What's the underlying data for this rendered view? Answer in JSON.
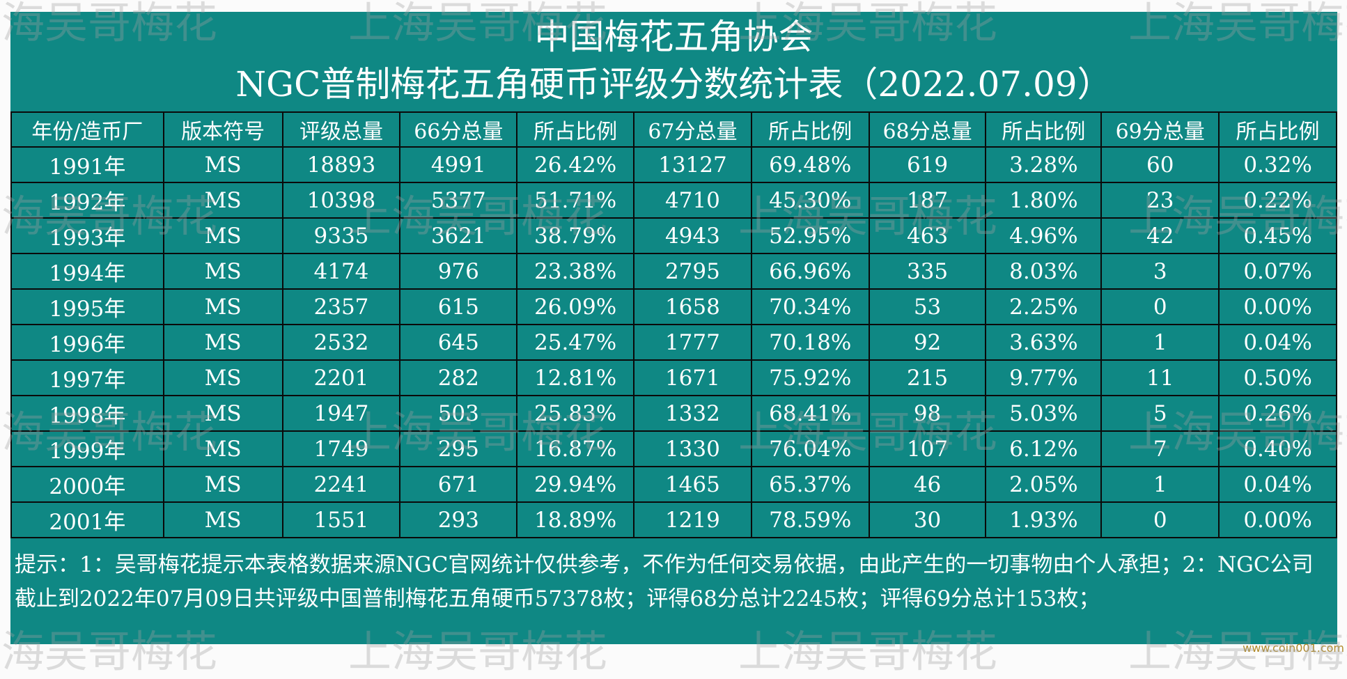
{
  "title": "中国梅花五角协会",
  "subtitle": "NGC普制梅花五角硬币评级分数统计表（2022.07.09）",
  "table": {
    "headers": [
      "年份/造币厂",
      "版本符号",
      "评级总量",
      "66分总量",
      "所占比例",
      "67分总量",
      "所占比例",
      "68分总量",
      "所占比例",
      "69分总量",
      "所占比例"
    ],
    "rows": [
      [
        "1991年",
        "MS",
        "18893",
        "4991",
        "26.42%",
        "13127",
        "69.48%",
        "619",
        "3.28%",
        "60",
        "0.32%"
      ],
      [
        "1992年",
        "MS",
        "10398",
        "5377",
        "51.71%",
        "4710",
        "45.30%",
        "187",
        "1.80%",
        "23",
        "0.22%"
      ],
      [
        "1993年",
        "MS",
        "9335",
        "3621",
        "38.79%",
        "4943",
        "52.95%",
        "463",
        "4.96%",
        "42",
        "0.45%"
      ],
      [
        "1994年",
        "MS",
        "4174",
        "976",
        "23.38%",
        "2795",
        "66.96%",
        "335",
        "8.03%",
        "3",
        "0.07%"
      ],
      [
        "1995年",
        "MS",
        "2357",
        "615",
        "26.09%",
        "1658",
        "70.34%",
        "53",
        "2.25%",
        "0",
        "0.00%"
      ],
      [
        "1996年",
        "MS",
        "2532",
        "645",
        "25.47%",
        "1777",
        "70.18%",
        "92",
        "3.63%",
        "1",
        "0.04%"
      ],
      [
        "1997年",
        "MS",
        "2201",
        "282",
        "12.81%",
        "1671",
        "75.92%",
        "215",
        "9.77%",
        "11",
        "0.50%"
      ],
      [
        "1998年",
        "MS",
        "1947",
        "503",
        "25.83%",
        "1332",
        "68.41%",
        "98",
        "5.03%",
        "5",
        "0.26%"
      ],
      [
        "1999年",
        "MS",
        "1749",
        "295",
        "16.87%",
        "1330",
        "76.04%",
        "107",
        "6.12%",
        "7",
        "0.40%"
      ],
      [
        "2000年",
        "MS",
        "2241",
        "671",
        "29.94%",
        "1465",
        "65.37%",
        "46",
        "2.05%",
        "1",
        "0.04%"
      ],
      [
        "2001年",
        "MS",
        "1551",
        "293",
        "18.89%",
        "1219",
        "78.59%",
        "30",
        "1.93%",
        "0",
        "0.00%"
      ]
    ]
  },
  "note": "提示：1：吴哥梅花提示本表格数据来源NGC官网统计仅供参考，不作为任何交易依据，由此产生的一切事物由个人承担；2：NGC公司截止到2022年07月09日共评级中国普制梅花五角硬币57378枚；评得68分总计2245枚；评得69分总计153枚；",
  "watermark": "上海吴哥梅花",
  "site_watermark": "www.coin001.com",
  "colors": {
    "background": "#0f8884",
    "text": "#ffffff",
    "border": "#0a0a0a"
  }
}
